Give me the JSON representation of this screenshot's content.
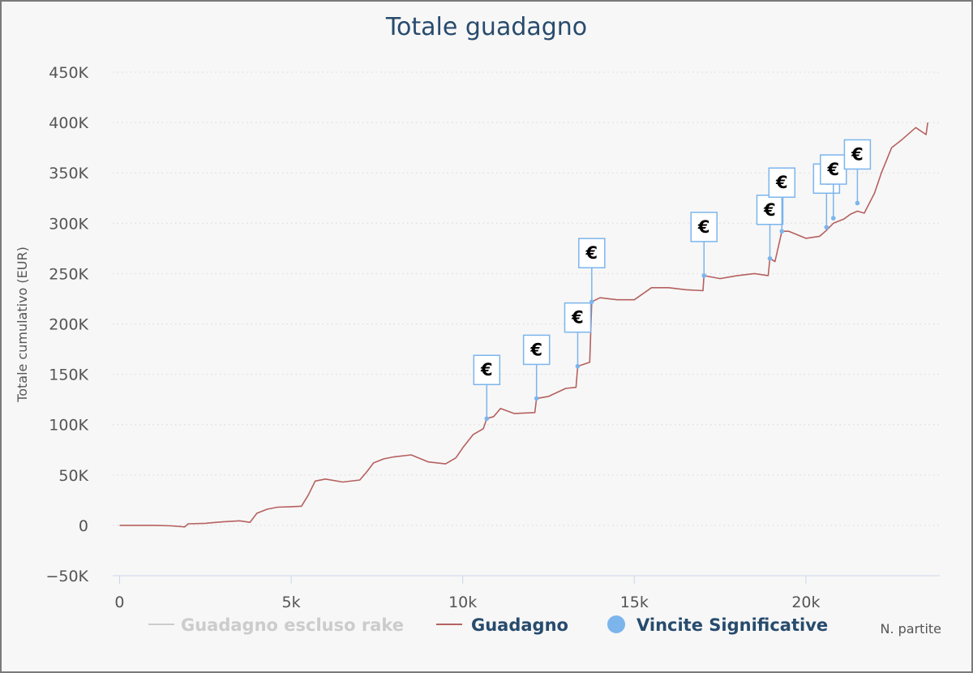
{
  "chart_data": {
    "type": "line",
    "title": "Totale guadagno",
    "xlabel": "N. partite",
    "ylabel": "Totale cumulativo (EUR)",
    "xlim": [
      -200,
      23900
    ],
    "ylim": [
      -50000,
      450000
    ],
    "x_ticks": [
      0,
      5000,
      10000,
      15000,
      20000
    ],
    "x_tick_labels": [
      "0",
      "5k",
      "10k",
      "15k",
      "20k"
    ],
    "y_ticks": [
      -50000,
      0,
      50000,
      100000,
      150000,
      200000,
      250000,
      300000,
      350000,
      400000,
      450000
    ],
    "y_tick_labels": [
      "−50K",
      "0",
      "50K",
      "100K",
      "150K",
      "200K",
      "250K",
      "300K",
      "350K",
      "400K",
      "450K"
    ],
    "grid": "horizontal dotted",
    "legend_position": "bottom",
    "legend": [
      {
        "name": "Guadagno escluso rake",
        "symbol": "line",
        "color": "#cccccc",
        "visible": false
      },
      {
        "name": "Guadagno",
        "symbol": "line",
        "color": "#b5615f",
        "visible": true
      },
      {
        "name": "Vincite Significative",
        "symbol": "circle",
        "color": "#7cb5ec",
        "visible": true
      }
    ],
    "series": [
      {
        "name": "Guadagno",
        "color": "#b5615f",
        "points": [
          [
            0,
            0
          ],
          [
            500,
            0
          ],
          [
            1000,
            0
          ],
          [
            1500,
            -500
          ],
          [
            1900,
            -1500
          ],
          [
            2000,
            1500
          ],
          [
            2500,
            2000
          ],
          [
            3000,
            3500
          ],
          [
            3500,
            4500
          ],
          [
            3800,
            3000
          ],
          [
            4000,
            12000
          ],
          [
            4300,
            16000
          ],
          [
            4600,
            18000
          ],
          [
            5000,
            18500
          ],
          [
            5300,
            19000
          ],
          [
            5500,
            30000
          ],
          [
            5700,
            44000
          ],
          [
            6000,
            46000
          ],
          [
            6500,
            43000
          ],
          [
            7000,
            45000
          ],
          [
            7200,
            53000
          ],
          [
            7400,
            62000
          ],
          [
            7700,
            66000
          ],
          [
            8000,
            68000
          ],
          [
            8500,
            70000
          ],
          [
            9000,
            63000
          ],
          [
            9500,
            61000
          ],
          [
            9800,
            67000
          ],
          [
            10000,
            77000
          ],
          [
            10300,
            90000
          ],
          [
            10600,
            96000
          ],
          [
            10700,
            106000
          ],
          [
            10900,
            108000
          ],
          [
            11100,
            116000
          ],
          [
            11500,
            111000
          ],
          [
            12100,
            112000
          ],
          [
            12150,
            126000
          ],
          [
            12500,
            128000
          ],
          [
            13000,
            136000
          ],
          [
            13300,
            137000
          ],
          [
            13350,
            158000
          ],
          [
            13700,
            162000
          ],
          [
            13760,
            222000
          ],
          [
            14000,
            226000
          ],
          [
            14500,
            224000
          ],
          [
            15000,
            224000
          ],
          [
            15500,
            236000
          ],
          [
            16000,
            236000
          ],
          [
            16500,
            234000
          ],
          [
            17000,
            233000
          ],
          [
            17030,
            248000
          ],
          [
            17500,
            245000
          ],
          [
            18000,
            248000
          ],
          [
            18500,
            250000
          ],
          [
            18900,
            248000
          ],
          [
            18950,
            265000
          ],
          [
            19100,
            262000
          ],
          [
            19300,
            292000
          ],
          [
            19500,
            292000
          ],
          [
            20000,
            285000
          ],
          [
            20400,
            287000
          ],
          [
            20600,
            293000
          ],
          [
            20800,
            300000
          ],
          [
            21100,
            304000
          ],
          [
            21300,
            309000
          ],
          [
            21500,
            312000
          ],
          [
            21700,
            310000
          ],
          [
            22000,
            330000
          ],
          [
            22200,
            350000
          ],
          [
            22500,
            375000
          ],
          [
            22800,
            383000
          ],
          [
            23200,
            395000
          ],
          [
            23500,
            388000
          ],
          [
            23550,
            400000
          ]
        ]
      },
      {
        "name": "Vincite Significative",
        "color": "#7cb5ec",
        "marker_label": "€",
        "points": [
          [
            10700,
            106000
          ],
          [
            12150,
            126000
          ],
          [
            13350,
            158000
          ],
          [
            13760,
            222000
          ],
          [
            17030,
            248000
          ],
          [
            18950,
            265000
          ],
          [
            19300,
            292000
          ],
          [
            20600,
            296000
          ],
          [
            20800,
            305000
          ],
          [
            21500,
            320000
          ]
        ]
      }
    ]
  }
}
